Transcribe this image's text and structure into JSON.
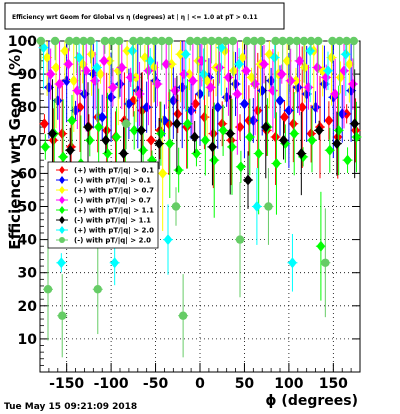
{
  "chart_data": {
    "type": "scatter",
    "title": "Efficiency wrt Geom for Global vs η (degrees) at | η | <= 1.0 at pT > 0.11",
    "xlabel": "ϕ (degrees)",
    "ylabel": "Efficiency wrt Geom (%)",
    "xlim": [
      -180,
      180
    ],
    "ylim": [
      0,
      100
    ],
    "x_ticks": [
      "-150",
      "-100",
      "-50",
      "0",
      "50",
      "100",
      "150"
    ],
    "y_ticks": [
      "10",
      "20",
      "30",
      "40",
      "50",
      "60",
      "70",
      "80",
      "90",
      "100"
    ],
    "grid": true,
    "legend_position": "left-center",
    "timestamp": "Tue May 15 09:21:09 2018",
    "series": [
      {
        "name": "(+) with pT/|q| > 0.1",
        "color": "#ff0000",
        "marker": "diamond",
        "x": [
          -175,
          -165,
          -155,
          -145,
          -135,
          -125,
          -115,
          -105,
          -95,
          -85,
          -75,
          -65,
          -55,
          -45,
          -35,
          -25,
          -15,
          -5,
          5,
          15,
          25,
          35,
          45,
          55,
          65,
          75,
          85,
          95,
          105,
          115,
          125,
          135,
          145,
          155,
          165,
          175
        ],
        "y": [
          75,
          70,
          72,
          68,
          80,
          74,
          77,
          73,
          71,
          76,
          82,
          79,
          70,
          73,
          75,
          78,
          74,
          81,
          77,
          72,
          75,
          70,
          74,
          76,
          79,
          73,
          71,
          77,
          75,
          80,
          72,
          74,
          76,
          71,
          78,
          73
        ]
      },
      {
        "name": "(-) with pT/|q| > 0.1",
        "color": "#0000ff",
        "marker": "diamond",
        "x": [
          -170,
          -160,
          -150,
          -140,
          -130,
          -120,
          -110,
          -100,
          -90,
          -80,
          -70,
          -60,
          -50,
          -40,
          -30,
          -20,
          -10,
          0,
          10,
          20,
          30,
          40,
          50,
          60,
          70,
          80,
          90,
          100,
          110,
          120,
          130,
          140,
          150,
          160,
          170
        ],
        "y": [
          86,
          82,
          88,
          79,
          84,
          90,
          77,
          83,
          87,
          81,
          85,
          80,
          88,
          76,
          82,
          86,
          79,
          84,
          89,
          80,
          83,
          87,
          81,
          76,
          85,
          88,
          82,
          79,
          86,
          84,
          80,
          87,
          83,
          78,
          85
        ]
      },
      {
        "name": "(+) with pT/|q| > 0.7",
        "color": "#ffff00",
        "marker": "diamond",
        "x": [
          -172,
          -162,
          -152,
          -142,
          -132,
          -122,
          -112,
          -102,
          -92,
          -82,
          -72,
          -62,
          -52,
          -42,
          -32,
          -22,
          -12,
          -2,
          8,
          18,
          28,
          38,
          48,
          58,
          68,
          78,
          88,
          98,
          108,
          118,
          128,
          138,
          148,
          158,
          168
        ],
        "y": [
          95,
          92,
          97,
          88,
          93,
          96,
          90,
          94,
          91,
          97,
          89,
          95,
          92,
          60,
          93,
          96,
          90,
          94,
          88,
          92,
          97,
          91,
          95,
          89,
          93,
          96,
          90,
          94,
          88,
          92,
          97,
          91,
          95,
          89,
          93
        ]
      },
      {
        "name": "(-) with pT/|q| > 0.7",
        "color": "#ff00ff",
        "marker": "diamond",
        "x": [
          -168,
          -158,
          -148,
          -138,
          -128,
          -118,
          -108,
          -98,
          -88,
          -78,
          -68,
          -58,
          -48,
          -38,
          -28,
          -18,
          -8,
          2,
          12,
          22,
          32,
          42,
          52,
          62,
          72,
          82,
          92,
          102,
          112,
          122,
          132,
          142,
          152,
          162,
          172
        ],
        "y": [
          90,
          87,
          93,
          85,
          91,
          88,
          94,
          86,
          92,
          89,
          84,
          91,
          87,
          93,
          85,
          90,
          88,
          94,
          86,
          92,
          89,
          84,
          91,
          87,
          93,
          85,
          90,
          88,
          94,
          86,
          92,
          89,
          84,
          91,
          87
        ]
      },
      {
        "name": "(+) with pT/|q| > 1.1",
        "color": "#00ff00",
        "marker": "diamond",
        "x": [
          -174,
          -164,
          -154,
          -144,
          -134,
          -124,
          -114,
          -104,
          -94,
          -84,
          -74,
          -64,
          -54,
          -44,
          -34,
          -24,
          -14,
          -4,
          6,
          16,
          26,
          36,
          46,
          56,
          66,
          76,
          86,
          96,
          106,
          116,
          126,
          136,
          146,
          156,
          166,
          176
        ],
        "y": [
          68,
          72,
          65,
          76,
          63,
          70,
          74,
          66,
          71,
          60,
          73,
          67,
          64,
          72,
          69,
          61,
          75,
          66,
          70,
          64,
          73,
          68,
          62,
          71,
          66,
          74,
          63,
          69,
          72,
          65,
          70,
          38,
          67,
          73,
          64,
          71
        ]
      },
      {
        "name": "(-) with pT/|q| > 1.1",
        "color": "#000000",
        "marker": "diamond",
        "x": [
          -166,
          -146,
          -126,
          -106,
          -86,
          -66,
          -46,
          -26,
          -6,
          14,
          34,
          54,
          74,
          94,
          114,
          134,
          154,
          174
        ],
        "y": [
          72,
          67,
          74,
          70,
          66,
          73,
          69,
          75,
          71,
          68,
          72,
          58,
          74,
          70,
          66,
          73,
          69,
          75
        ]
      },
      {
        "name": "(+) with pT/|q| > 2.0",
        "color": "#00ffff",
        "marker": "diamond",
        "x": [
          -176,
          -156,
          -136,
          -116,
          -96,
          -76,
          -56,
          -36,
          -16,
          4,
          24,
          44,
          64,
          84,
          104,
          124,
          144,
          164
        ],
        "y": [
          98,
          33,
          95,
          92,
          33,
          97,
          94,
          40,
          96,
          90,
          98,
          93,
          50,
          95,
          33,
          97,
          91,
          96
        ]
      },
      {
        "name": "(-) with pT/|q| > 2.0",
        "color": "#66cc66",
        "marker": "circle",
        "x": [
          -179,
          -171,
          -163,
          -155,
          -147,
          -139,
          -131,
          -123,
          -115,
          -107,
          -99,
          -91,
          -83,
          -75,
          -67,
          -59,
          -51,
          -43,
          -35,
          -27,
          -19,
          -11,
          -3,
          5,
          13,
          21,
          29,
          37,
          45,
          53,
          61,
          69,
          77,
          85,
          93,
          101,
          109,
          117,
          125,
          133,
          141,
          149,
          157,
          165,
          173
        ],
        "y": [
          100,
          25,
          100,
          17,
          100,
          100,
          100,
          100,
          25,
          100,
          100,
          100,
          75,
          100,
          100,
          100,
          100,
          100,
          100,
          50,
          17,
          100,
          100,
          100,
          100,
          100,
          100,
          100,
          40,
          100,
          100,
          100,
          50,
          100,
          100,
          100,
          100,
          100,
          100,
          100,
          33,
          100,
          100,
          100,
          100
        ]
      }
    ]
  }
}
